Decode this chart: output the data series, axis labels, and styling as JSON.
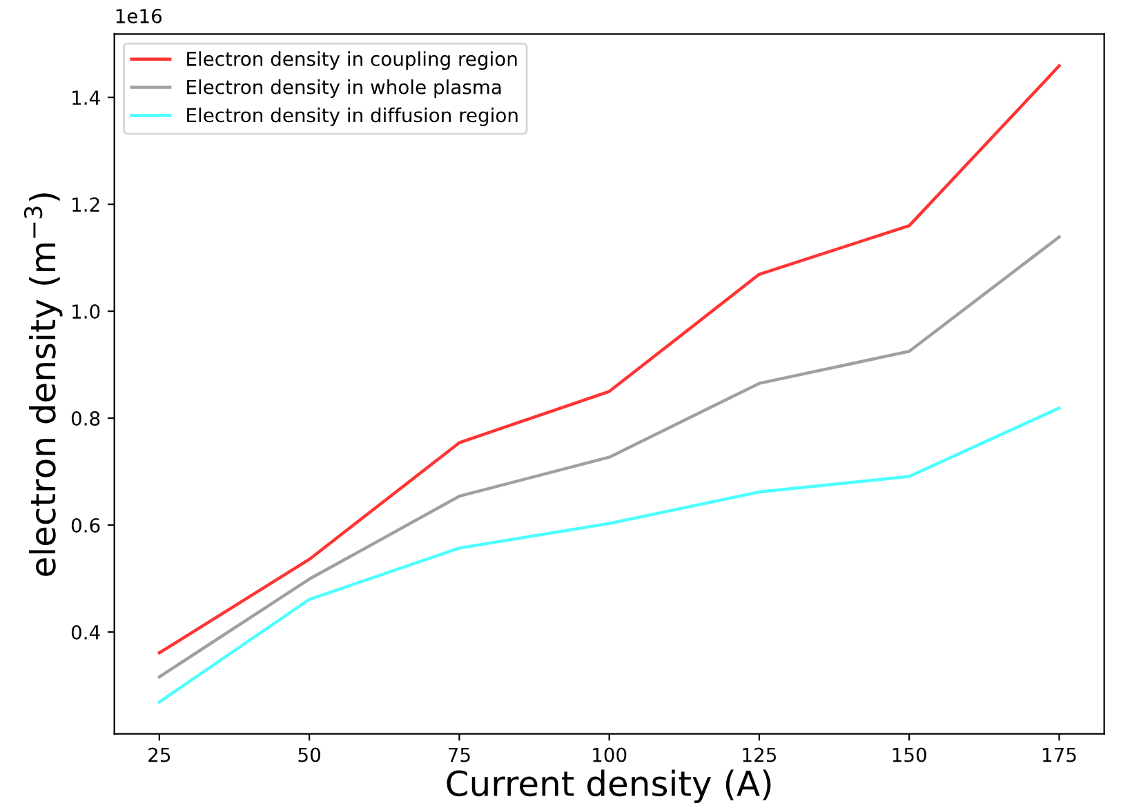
{
  "chart_data": {
    "type": "line",
    "xlabel": "Current density (A)",
    "ylabel": "electron density (m$^{−3}$)",
    "x": [
      25,
      50,
      75,
      100,
      125,
      150,
      175
    ],
    "series": [
      {
        "name": "Electron density in coupling region",
        "color": "#ff3333",
        "values": [
          0.361,
          0.536,
          0.754,
          0.85,
          1.069,
          1.16,
          1.459
        ]
      },
      {
        "name": "Electron density in whole plasma",
        "color": "#a0a0a0",
        "values": [
          0.316,
          0.499,
          0.654,
          0.727,
          0.865,
          0.925,
          1.139
        ]
      },
      {
        "name": "Electron density in diffusion region",
        "color": "#4dffff",
        "values": [
          0.269,
          0.461,
          0.557,
          0.603,
          0.662,
          0.691,
          0.819
        ]
      }
    ],
    "xlim": [
      17.5,
      182.5
    ],
    "xticks": [
      25,
      50,
      75,
      100,
      125,
      150,
      175
    ],
    "ylim": [
      0.2095,
      1.5185
    ],
    "yticks": [
      0.4,
      0.6,
      0.8,
      {
        "value": 1,
        "label": "1.0"
      },
      1.2,
      1.4
    ],
    "annotations": [
      "1e16"
    ],
    "legend": "top left",
    "grid": false,
    "marker": "none",
    "line_style": "solid"
  }
}
